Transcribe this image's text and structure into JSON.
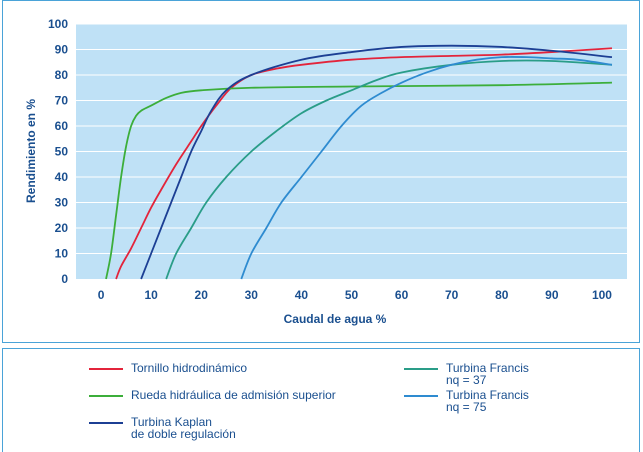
{
  "chart_data": {
    "type": "line",
    "xlabel": "Caudal de agua %",
    "ylabel": "Rendimiento en %",
    "xlim": [
      -5,
      105
    ],
    "ylim": [
      0,
      100
    ],
    "x_ticks": [
      "0",
      "10",
      "20",
      "30",
      "40",
      "50",
      "60",
      "70",
      "80",
      "90",
      "100"
    ],
    "y_ticks": [
      "0",
      "10",
      "20",
      "30",
      "40",
      "50",
      "60",
      "70",
      "80",
      "90",
      "100"
    ],
    "grid": true,
    "legend_position": "bottom",
    "series": [
      {
        "name": "Tornillo hidrodinámico",
        "color": "#e3243b",
        "points": [
          [
            3,
            0
          ],
          [
            4,
            5
          ],
          [
            6,
            12
          ],
          [
            8,
            20
          ],
          [
            10,
            28
          ],
          [
            12,
            35
          ],
          [
            15,
            45
          ],
          [
            18,
            54
          ],
          [
            20,
            60
          ],
          [
            23,
            68
          ],
          [
            26,
            75
          ],
          [
            30,
            80
          ],
          [
            35,
            82.5
          ],
          [
            40,
            84
          ],
          [
            50,
            86
          ],
          [
            60,
            87
          ],
          [
            70,
            87.5
          ],
          [
            80,
            88
          ],
          [
            90,
            89
          ],
          [
            102,
            90.5
          ]
        ]
      },
      {
        "name": "Rueda hidráulica de admisión superior",
        "color": "#3cae3a",
        "points": [
          [
            1,
            0
          ],
          [
            2,
            10
          ],
          [
            3,
            25
          ],
          [
            4,
            40
          ],
          [
            5,
            52
          ],
          [
            6,
            60
          ],
          [
            7,
            64
          ],
          [
            8,
            66
          ],
          [
            10,
            68
          ],
          [
            13,
            71
          ],
          [
            16,
            73
          ],
          [
            20,
            74
          ],
          [
            30,
            75
          ],
          [
            50,
            75.5
          ],
          [
            80,
            76
          ],
          [
            102,
            77
          ]
        ]
      },
      {
        "name": "Turbina Kaplan\nde doble regulación",
        "color": "#1c3f94",
        "points": [
          [
            8,
            0
          ],
          [
            10,
            10
          ],
          [
            12,
            20
          ],
          [
            14,
            30
          ],
          [
            16,
            40
          ],
          [
            18,
            50
          ],
          [
            20,
            58
          ],
          [
            22,
            66
          ],
          [
            25,
            74
          ],
          [
            30,
            80
          ],
          [
            40,
            86
          ],
          [
            50,
            89
          ],
          [
            60,
            91
          ],
          [
            70,
            91.5
          ],
          [
            80,
            91
          ],
          [
            90,
            89.5
          ],
          [
            102,
            87
          ]
        ]
      },
      {
        "name": "Turbina Francis\nnq = 37",
        "color": "#2a9d88",
        "points": [
          [
            13,
            0
          ],
          [
            15,
            10
          ],
          [
            18,
            20
          ],
          [
            21,
            30
          ],
          [
            25,
            40
          ],
          [
            30,
            50
          ],
          [
            35,
            58
          ],
          [
            40,
            65
          ],
          [
            45,
            70
          ],
          [
            50,
            74
          ],
          [
            55,
            78
          ],
          [
            60,
            81
          ],
          [
            70,
            84
          ],
          [
            80,
            85.5
          ],
          [
            90,
            85.5
          ],
          [
            102,
            84
          ]
        ]
      },
      {
        "name": "Turbina Francis\nnq = 75",
        "color": "#2e8bd0",
        "points": [
          [
            28,
            0
          ],
          [
            30,
            10
          ],
          [
            33,
            20
          ],
          [
            36,
            30
          ],
          [
            40,
            40
          ],
          [
            44,
            50
          ],
          [
            48,
            60
          ],
          [
            52,
            68
          ],
          [
            56,
            73
          ],
          [
            60,
            77
          ],
          [
            65,
            81
          ],
          [
            70,
            84
          ],
          [
            75,
            86
          ],
          [
            80,
            87
          ],
          [
            85,
            87
          ],
          [
            90,
            86.5
          ],
          [
            95,
            86
          ],
          [
            102,
            84
          ]
        ]
      }
    ]
  }
}
